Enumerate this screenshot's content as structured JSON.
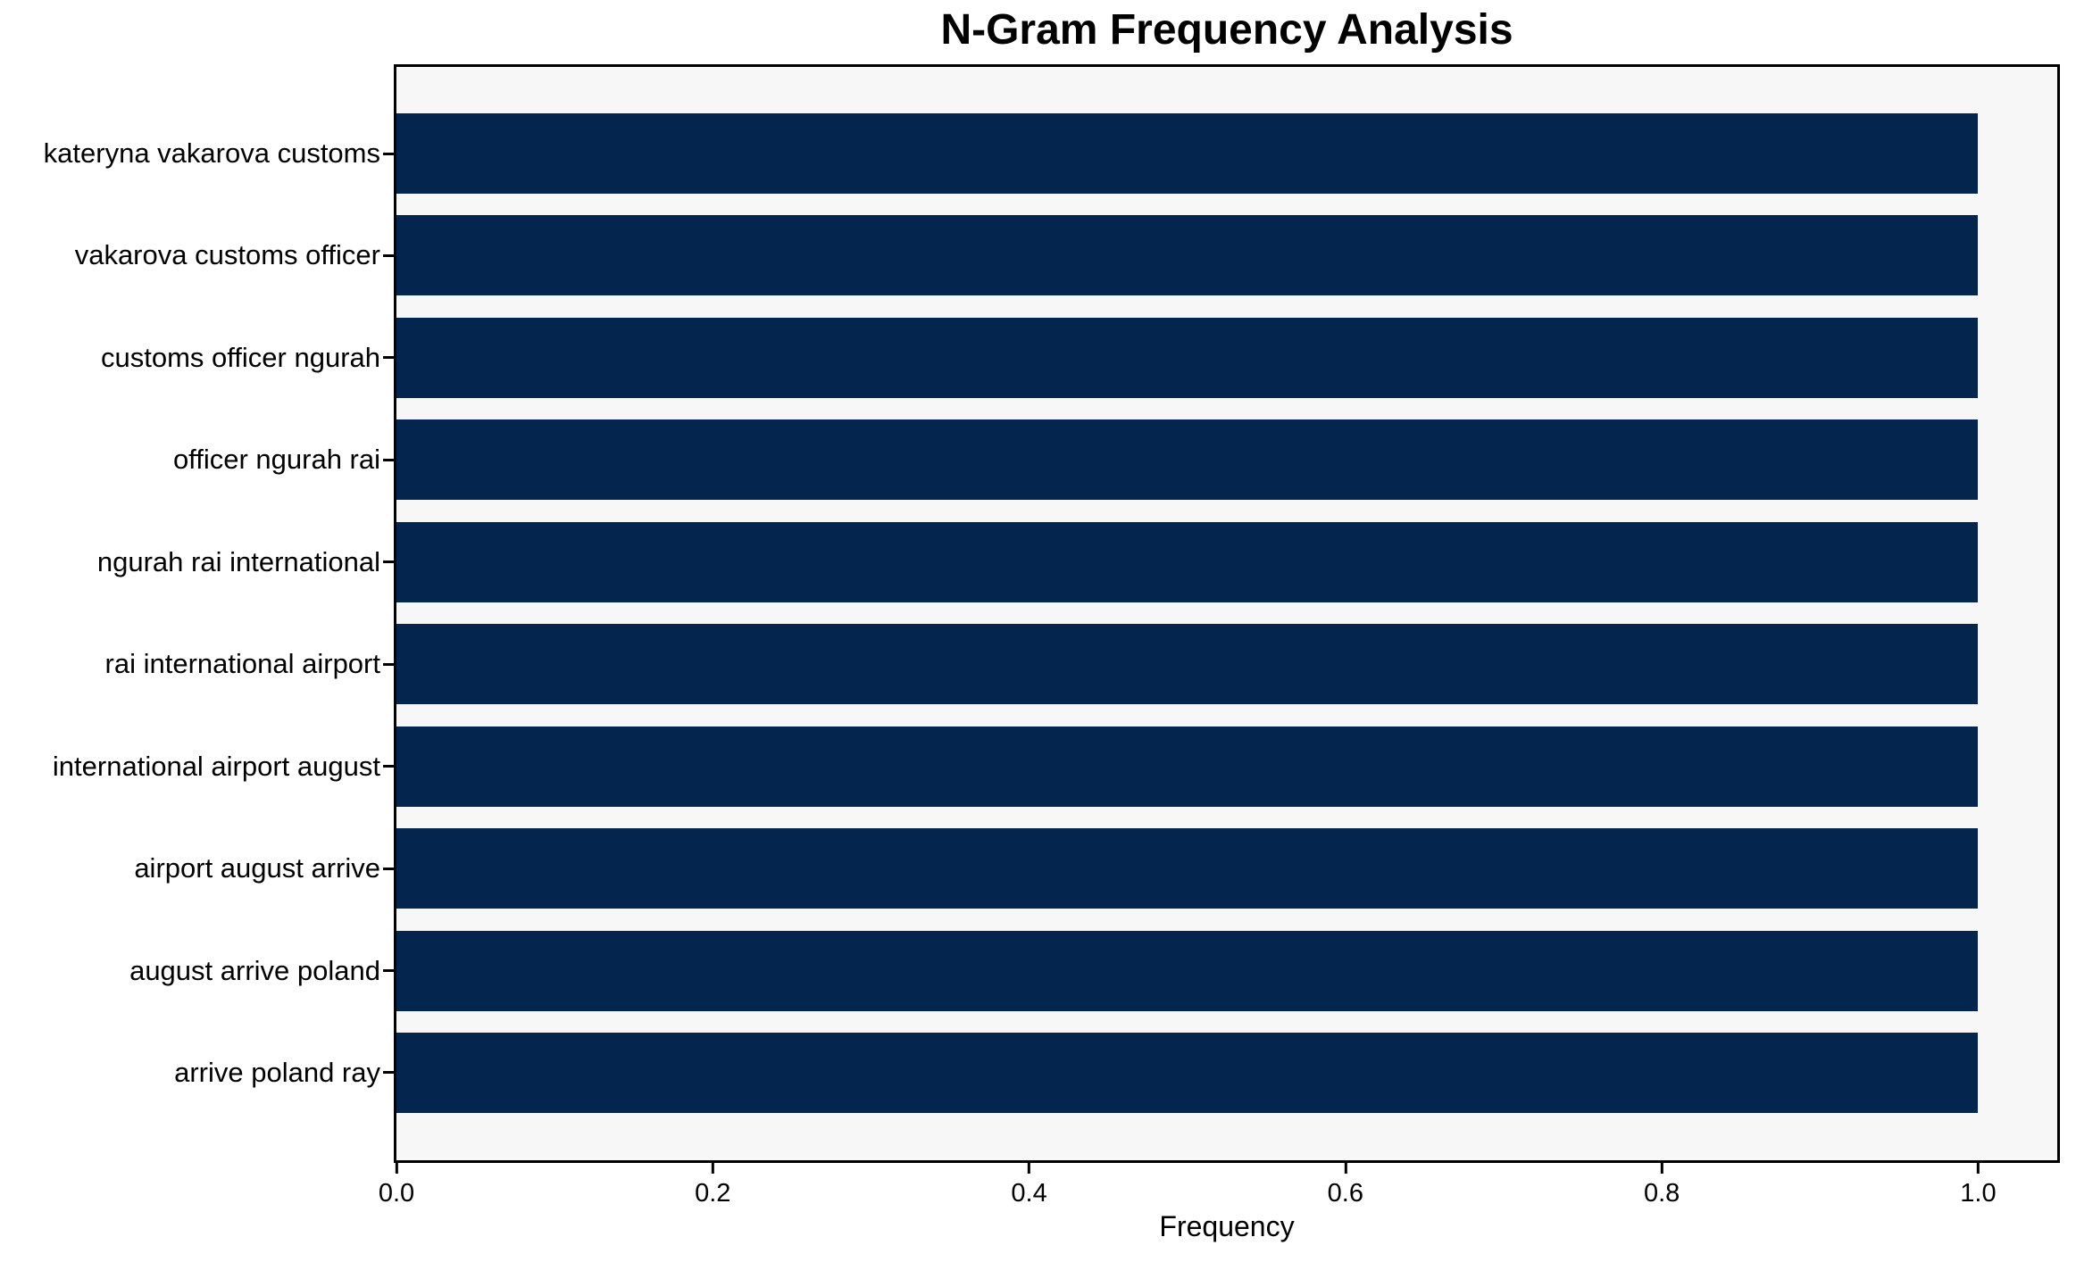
{
  "chart_data": {
    "type": "bar",
    "orientation": "horizontal",
    "title": "N-Gram Frequency Analysis",
    "xlabel": "Frequency",
    "ylabel": "",
    "categories": [
      "kateryna vakarova customs",
      "vakarova customs officer",
      "customs officer ngurah",
      "officer ngurah rai",
      "ngurah rai international",
      "rai international airport",
      "international airport august",
      "airport august arrive",
      "august arrive poland",
      "arrive poland ray"
    ],
    "values": [
      1.0,
      1.0,
      1.0,
      1.0,
      1.0,
      1.0,
      1.0,
      1.0,
      1.0,
      1.0
    ],
    "x_ticks": [
      0.0,
      0.2,
      0.4,
      0.6,
      0.8,
      1.0
    ],
    "x_tick_labels": [
      "0.0",
      "0.2",
      "0.4",
      "0.6",
      "0.8",
      "1.0"
    ],
    "xlim": [
      0,
      1.05
    ],
    "grid": false,
    "legend": false,
    "colors": {
      "bar": "#03254e",
      "plot_background": "#f7f7f7",
      "frame": "#000000",
      "text": "#000000",
      "page_background": "#ffffff"
    }
  }
}
